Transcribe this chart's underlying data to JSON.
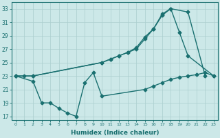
{
  "line1_x": [
    0,
    1,
    2,
    10,
    11,
    12,
    13,
    14,
    15,
    16,
    17,
    18,
    20,
    22
  ],
  "line1_y": [
    23,
    23,
    23,
    25,
    25.5,
    26,
    26.5,
    27,
    28.5,
    30,
    32,
    33,
    32.5,
    23
  ],
  "line2_x": [
    0,
    2,
    10,
    11,
    12,
    13,
    14,
    15,
    16,
    17,
    18,
    19,
    20,
    23
  ],
  "line2_y": [
    23,
    23,
    25,
    25.5,
    26,
    26.5,
    27.2,
    28.8,
    30,
    32.2,
    33,
    29.5,
    26,
    23
  ],
  "line3_x": [
    0,
    2,
    3,
    4,
    5,
    6,
    7,
    8,
    9,
    10,
    15,
    16,
    17,
    18,
    19,
    20,
    21,
    22,
    23
  ],
  "line3_y": [
    23,
    22.2,
    19,
    19,
    18.2,
    17.5,
    17,
    22,
    23.5,
    20,
    21,
    21.5,
    22,
    22.5,
    22.8,
    23,
    23.2,
    23.5,
    23
  ],
  "color": "#1a7070",
  "bg_color": "#cce8e8",
  "grid_color": "#aacece",
  "xlabel": "Humidex (Indice chaleur)",
  "xlim": [
    -0.5,
    23.5
  ],
  "ylim": [
    16.5,
    34
  ],
  "yticks": [
    17,
    19,
    21,
    23,
    25,
    27,
    29,
    31,
    33
  ],
  "xticks": [
    0,
    1,
    2,
    3,
    4,
    5,
    6,
    7,
    8,
    9,
    10,
    11,
    12,
    13,
    14,
    15,
    16,
    17,
    18,
    19,
    20,
    21,
    22,
    23
  ],
  "marker": "D",
  "markersize": 2.5,
  "linewidth": 1.0
}
